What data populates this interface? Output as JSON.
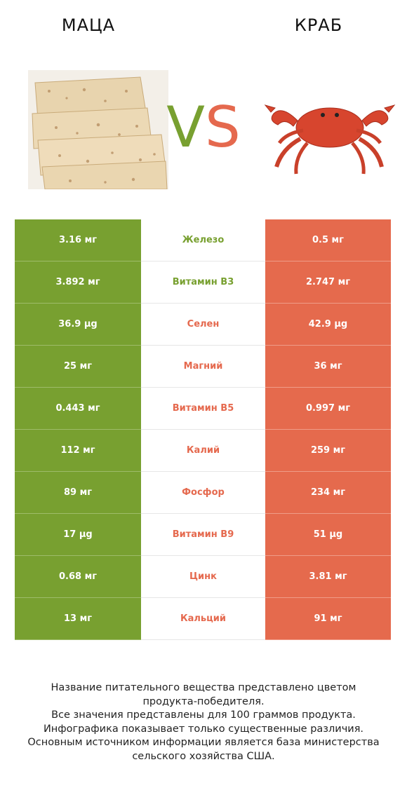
{
  "header": {
    "left_title": "МАЦА",
    "right_title": "КРАБ",
    "vs_v": "V",
    "vs_s": "S"
  },
  "colors": {
    "left_accent": "#78a030",
    "right_accent": "#e56a4d"
  },
  "rows": [
    {
      "left": "3.16 мг",
      "label": "Железо",
      "right": "0.5 мг",
      "winner": "left"
    },
    {
      "left": "3.892 мг",
      "label": "Витамин B3",
      "right": "2.747 мг",
      "winner": "left"
    },
    {
      "left": "36.9 µg",
      "label": "Селен",
      "right": "42.9 µg",
      "winner": "right"
    },
    {
      "left": "25 мг",
      "label": "Магний",
      "right": "36 мг",
      "winner": "right"
    },
    {
      "left": "0.443 мг",
      "label": "Витамин B5",
      "right": "0.997 мг",
      "winner": "right"
    },
    {
      "left": "112 мг",
      "label": "Калий",
      "right": "259 мг",
      "winner": "right"
    },
    {
      "left": "89 мг",
      "label": "Фосфор",
      "right": "234 мг",
      "winner": "right"
    },
    {
      "left": "17 µg",
      "label": "Витамин B9",
      "right": "51 µg",
      "winner": "right"
    },
    {
      "left": "0.68 мг",
      "label": "Цинк",
      "right": "3.81 мг",
      "winner": "right"
    },
    {
      "left": "13 мг",
      "label": "Кальций",
      "right": "91 мг",
      "winner": "right"
    }
  ],
  "footnote": [
    "Название питательного вещества представлено цветом",
    "продукта-победителя.",
    "Все значения представлены для 100 граммов продукта.",
    "Инфографика показывает только существенные различия.",
    "Основным источником информации является база министерства",
    "сельского хозяйства США."
  ]
}
